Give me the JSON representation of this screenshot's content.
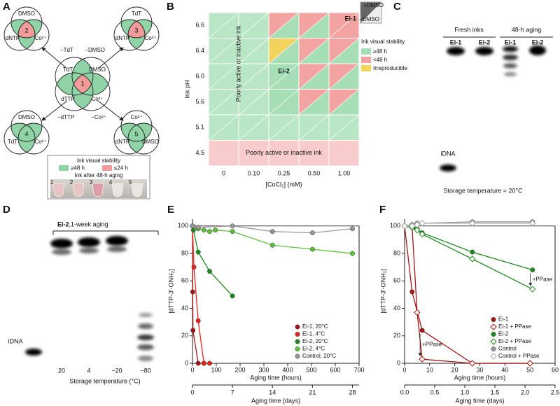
{
  "panel_a": {
    "letter": "A",
    "venns": [
      {
        "number": "1",
        "labels": [
          "TdT",
          "DMSO",
          "dTTP",
          "Co²⁺"
        ],
        "color": "#f29b9b"
      },
      {
        "number": "2",
        "labels": [
          "DMSO",
          "dNTP",
          "Co²⁺"
        ],
        "color": "#f29b9b"
      },
      {
        "number": "3",
        "labels": [
          "TdT",
          "dNTP",
          "Co²⁺"
        ],
        "color": "#f29b9b"
      },
      {
        "number": "4",
        "labels": [
          "DMSO",
          "TdT",
          "Co²⁺"
        ],
        "color": "#8fd3a6"
      },
      {
        "number": "5",
        "labels": [
          "Co²⁺",
          "dNTP",
          "DMSO"
        ],
        "color": "#8fd3a6"
      }
    ],
    "arrows": [
      "−TdT",
      "−DMSO",
      "−dTTP",
      "−Co²⁺"
    ],
    "legend": {
      "title": "Ink visual stability",
      "items": [
        {
          "label": "≥48 h",
          "color": "#8fd3a6"
        },
        {
          "label": "≤24 h",
          "color": "#f29b9b"
        }
      ]
    },
    "photo": {
      "caption": "Ink after 48-h aging",
      "tubes": [
        "1",
        "2",
        "3",
        "4",
        "5"
      ]
    }
  },
  "panel_b": {
    "letter": "B",
    "xlabel": "[CoCl₂] (mM)",
    "ylabel": "Ink pH",
    "categories": [
      "0",
      "0.10",
      "0.25",
      "0.50",
      "1.00"
    ],
    "rows": [
      "6.6",
      "6.4",
      "6.0",
      "5.6",
      "5.1",
      "4.5"
    ],
    "inactive_labels": [
      "Poorly active or inactive ink",
      "Poorly active or inactive ink"
    ],
    "annotations": [
      "Ei-1",
      "Ei-2"
    ],
    "key": {
      "plus": "+DMSO",
      "minus": "−DMSO"
    },
    "legend": {
      "title": "Ink visual stability",
      "items": [
        {
          "label": "≥48 h",
          "color": "#a6dfb6"
        },
        {
          "label": "<48 h",
          "color": "#f4a3a3"
        },
        {
          "label": "Irreproducible",
          "color": "#f3d35c"
        }
      ]
    },
    "left_color": "#b9e6c5",
    "low_ph_colors": [
      "#b9e6c5",
      "#f8cccc"
    ],
    "cells": [
      [
        {
          "plus": "#f4a3a3",
          "minus": "#a6dfb6"
        },
        {
          "plus": "#f4a3a3",
          "minus": "#a6dfb6"
        },
        {
          "plus": "#f4a3a3",
          "minus": "#f4a3a3"
        }
      ],
      [
        {
          "plus": "#f3d35c",
          "minus": "#a6dfb6"
        },
        {
          "plus": "#f4a3a3",
          "minus": "#a6dfb6"
        },
        {
          "plus": "#f4a3a3",
          "minus": "#a6dfb6"
        }
      ],
      [
        {
          "plus": "#a6dfb6",
          "minus": "#a6dfb6"
        },
        {
          "plus": "#f4a3a3",
          "minus": "#a6dfb6"
        },
        {
          "plus": "#f4a3a3",
          "minus": "#a6dfb6"
        }
      ],
      [
        {
          "plus": "#a6dfb6",
          "minus": "#a6dfb6"
        },
        {
          "plus": "#f4a3a3",
          "minus": "#a6dfb6"
        },
        {
          "plus": "#f4a3a3",
          "minus": "#a6dfb6"
        }
      ]
    ]
  },
  "panel_c": {
    "letter": "C",
    "groups": [
      "Fresh inks",
      "48-h aging"
    ],
    "lanes": [
      "Ei-1",
      "Ei-2",
      "Ei-1",
      "Ei-2"
    ],
    "marker": "iDNA",
    "caption": "Storage temperature = 20°C"
  },
  "panel_d": {
    "letter": "D",
    "title_bold": "Ei-2",
    "title": ",1-week aging",
    "lanes": [
      "20",
      "4",
      "−20",
      "−80"
    ],
    "marker": "iDNA",
    "xlabel": "Storage temperature (°C)"
  },
  "chart_data": [
    {
      "type": "line",
      "panel": "E",
      "xlabel": "Aging time (hours)",
      "x2label": "Aging time (days)",
      "ylabel": "[dTTP-3′-ONH₂]",
      "xlim": [
        0,
        700
      ],
      "xticks": [
        0,
        100,
        200,
        300,
        400,
        500,
        600,
        700
      ],
      "x2lim": [
        0,
        29.17
      ],
      "x2ticks": [
        0,
        7,
        14,
        21,
        28
      ],
      "ylim": [
        0,
        105
      ],
      "yticks": [
        0,
        20,
        40,
        60,
        80,
        100
      ],
      "reference_line": 100,
      "legend": "lower right",
      "series": [
        {
          "name": "Ei-1, 20°C",
          "color": "#a31515",
          "marker": "circle",
          "filled": true,
          "x": [
            0,
            1,
            2,
            24,
            48
          ],
          "values": [
            100,
            52,
            24,
            0,
            0
          ]
        },
        {
          "name": "Ei-1, 4°C",
          "color": "#e8221c",
          "marker": "circle",
          "filled": true,
          "x": [
            0,
            6,
            24,
            48,
            72
          ],
          "values": [
            100,
            70,
            31,
            0,
            0
          ]
        },
        {
          "name": "Ei-2, 20°C",
          "color": "#1e8a1e",
          "marker": "circle",
          "filled": true,
          "x": [
            0,
            4,
            24,
            72,
            168
          ],
          "values": [
            100,
            97,
            81,
            67,
            49
          ]
        },
        {
          "name": "Ei-2, 4°C",
          "color": "#5cc23a",
          "marker": "circle",
          "filled": true,
          "x": [
            0,
            24,
            48,
            72,
            96,
            168,
            336,
            504,
            672
          ],
          "values": [
            100,
            98,
            97,
            96,
            97,
            96,
            86,
            83,
            80
          ]
        },
        {
          "name": "Control, 20°C",
          "color": "#999999",
          "marker": "circle",
          "filled": true,
          "x": [
            0,
            24,
            168,
            336,
            504,
            672
          ],
          "values": [
            100,
            99,
            100,
            96,
            95,
            98
          ]
        }
      ]
    },
    {
      "type": "line",
      "panel": "F",
      "xlabel": "Aging time (hours)",
      "x2label": "Aging time (days)",
      "ylabel": "[dTTP-3′-ONH₂]",
      "xlim": [
        0,
        60
      ],
      "xticks": [
        0,
        10,
        20,
        30,
        40,
        50,
        60
      ],
      "x2lim": [
        0,
        2.5
      ],
      "x2ticks": [
        {
          "value": 0,
          "label": "0.0"
        },
        0.5,
        {
          "value": 1,
          "label": "1.0"
        },
        1.5,
        {
          "value": 2,
          "label": "2.0"
        },
        2.5
      ],
      "ylim": [
        0,
        105
      ],
      "yticks": [
        0,
        20,
        40,
        60,
        80,
        100
      ],
      "reference_line": 100,
      "legend": "lower right",
      "annotations": [
        "+PPase",
        "+PPase"
      ],
      "series": [
        {
          "name": "Ei-1",
          "color": "#a31515",
          "marker": "circle",
          "filled": true,
          "x": [
            0,
            3,
            7,
            27,
            50
          ],
          "values": [
            100,
            52,
            24,
            0,
            0
          ]
        },
        {
          "name": "Ei-1 + PPase",
          "color": "#a31515",
          "marker": "diamond",
          "filled": false,
          "x": [
            0,
            3,
            5,
            7,
            27,
            50
          ],
          "values": [
            100,
            99,
            37,
            3,
            0,
            0
          ]
        },
        {
          "name": "Ei-2",
          "color": "#1e8a1e",
          "marker": "circle",
          "filled": true,
          "x": [
            0,
            3,
            5,
            7,
            27,
            51
          ],
          "values": [
            100,
            99,
            98,
            95,
            81,
            68
          ]
        },
        {
          "name": "Ei-2 + PPase",
          "color": "#1e8a1e",
          "marker": "diamond",
          "filled": false,
          "x": [
            0,
            3,
            5,
            7,
            27,
            51
          ],
          "values": [
            100,
            99,
            97,
            94,
            76,
            54
          ]
        },
        {
          "name": "Control",
          "color": "#999999",
          "marker": "circle",
          "filled": true,
          "x": [
            0,
            3,
            5,
            7,
            27,
            51
          ],
          "values": [
            100,
            101,
            102,
            102,
            103,
            103
          ]
        },
        {
          "name": "Control + PPase",
          "color": "#aaaaaa",
          "marker": "diamond",
          "filled": false,
          "x": [
            0,
            3,
            5,
            7,
            27,
            51
          ],
          "values": [
            100,
            100,
            101,
            102,
            102,
            102
          ]
        }
      ]
    }
  ]
}
